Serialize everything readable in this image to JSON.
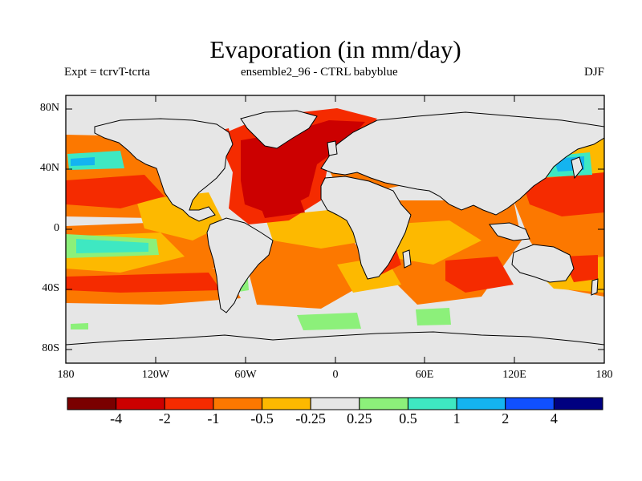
{
  "header": {
    "title": "Evaporation (in mm/day)",
    "left": "Expt = tcrvT-tcrta",
    "center": "ensemble2_96 - CTRL babyblue",
    "right": "DJF"
  },
  "map": {
    "lat_ticks": [
      "80N",
      "40N",
      "0",
      "40S",
      "80S"
    ],
    "lon_ticks": [
      "180",
      "120W",
      "60W",
      "0",
      "60E",
      "120E",
      "180"
    ]
  },
  "colorbar": {
    "colors": [
      "#7a0000",
      "#cc0000",
      "#f52b00",
      "#fc7800",
      "#fdb900",
      "#e6e6e6",
      "#8cf07a",
      "#3ee8c2",
      "#14b4f0",
      "#1050ff",
      "#000080"
    ],
    "labels": [
      "-4",
      "-2",
      "-1",
      "-0.5",
      "-0.25",
      "0.25",
      "0.5",
      "1",
      "2",
      "4"
    ]
  }
}
